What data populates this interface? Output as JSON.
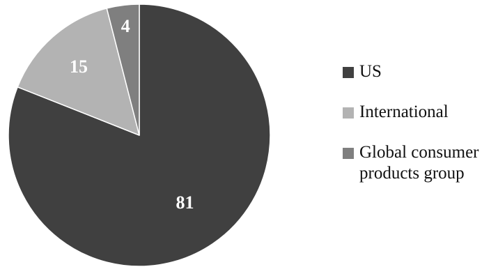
{
  "chart_data": {
    "type": "pie",
    "title": "",
    "slices": [
      {
        "label": "US",
        "value": 81,
        "color": "#404040"
      },
      {
        "label": "International",
        "value": 15,
        "color": "#b3b3b3"
      },
      {
        "label": "Global consumer products group",
        "value": 4,
        "color": "#7f7f7f"
      }
    ],
    "start_angle_deg": 0,
    "direction": "clockwise",
    "slice_border_color": "#ffffff",
    "legend_position": "right"
  }
}
